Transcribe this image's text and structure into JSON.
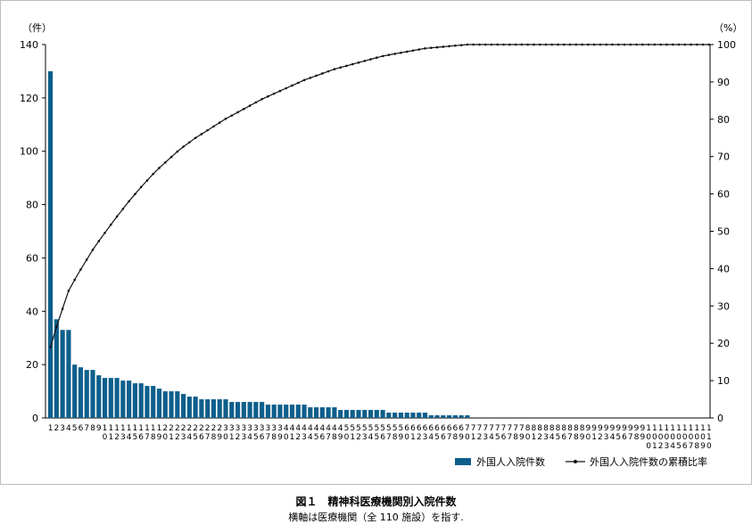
{
  "chart_data": {
    "type": "bar",
    "left_axis": {
      "unit_label": "（件）",
      "min": 0,
      "max": 140,
      "ticks": [
        0,
        20,
        40,
        60,
        80,
        100,
        120,
        140
      ]
    },
    "right_axis": {
      "unit_label": "（%）",
      "min": 0,
      "max": 100,
      "ticks": [
        0,
        10,
        20,
        30,
        40,
        50,
        60,
        70,
        80,
        90,
        100
      ]
    },
    "categories": [
      1,
      2,
      3,
      4,
      5,
      6,
      7,
      8,
      9,
      10,
      11,
      12,
      13,
      14,
      15,
      16,
      17,
      18,
      19,
      20,
      21,
      22,
      23,
      24,
      25,
      26,
      27,
      28,
      29,
      30,
      31,
      32,
      33,
      34,
      35,
      36,
      37,
      38,
      39,
      40,
      41,
      42,
      43,
      44,
      45,
      46,
      47,
      48,
      49,
      50,
      51,
      52,
      53,
      54,
      55,
      56,
      57,
      58,
      59,
      60,
      61,
      62,
      63,
      64,
      65,
      66,
      67,
      68,
      69,
      70,
      71,
      72,
      73,
      74,
      75,
      76,
      77,
      78,
      79,
      80,
      81,
      82,
      83,
      84,
      85,
      86,
      87,
      88,
      89,
      90,
      91,
      92,
      93,
      94,
      95,
      96,
      97,
      98,
      99,
      100,
      101,
      102,
      103,
      104,
      105,
      106,
      107,
      108,
      109,
      110
    ],
    "series": [
      {
        "name": "外国人入院件数",
        "axis": "left",
        "color": "#0e5f8c",
        "values": [
          130,
          37,
          33,
          33,
          20,
          19,
          18,
          18,
          16,
          15,
          15,
          15,
          14,
          14,
          13,
          13,
          12,
          12,
          11,
          10,
          10,
          10,
          9,
          8,
          8,
          7,
          7,
          7,
          7,
          7,
          6,
          6,
          6,
          6,
          6,
          6,
          5,
          5,
          5,
          5,
          5,
          5,
          5,
          4,
          4,
          4,
          4,
          4,
          3,
          3,
          3,
          3,
          3,
          3,
          3,
          3,
          2,
          2,
          2,
          2,
          2,
          2,
          2,
          1,
          1,
          1,
          1,
          1,
          1,
          1,
          0,
          0,
          0,
          0,
          0,
          0,
          0,
          0,
          0,
          0,
          0,
          0,
          0,
          0,
          0,
          0,
          0,
          0,
          0,
          0,
          0,
          0,
          0,
          0,
          0,
          0,
          0,
          0,
          0,
          0,
          0,
          0,
          0,
          0,
          0,
          0,
          0,
          0,
          0,
          0
        ]
      },
      {
        "name": "外国人入院件数の累積比率",
        "axis": "right",
        "color": "#111111"
      }
    ],
    "grid": false,
    "legend_position": "bottom-right"
  },
  "caption": {
    "title": "図１　精神科医療機関別入院件数",
    "note": "横軸は医療機関（全 110 施設）を指す."
  }
}
